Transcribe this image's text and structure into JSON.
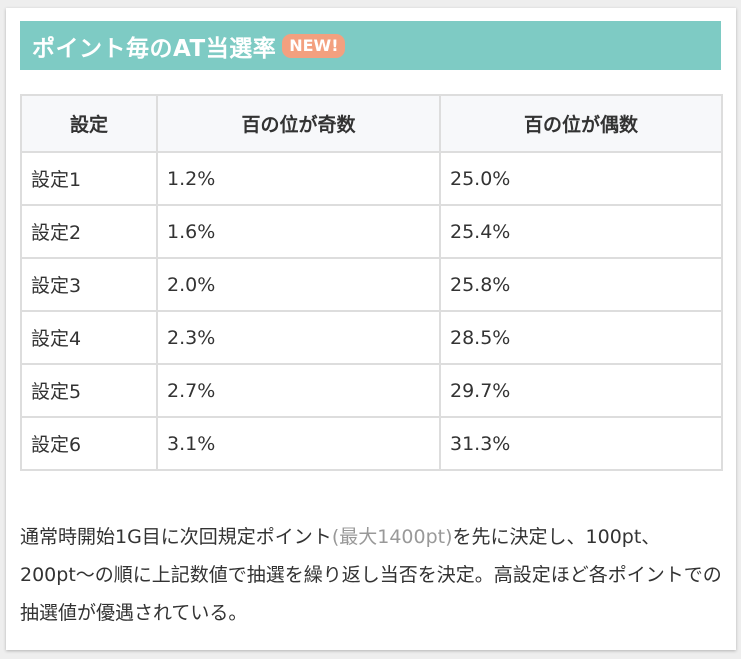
{
  "heading": {
    "title": "ポイント毎のAT当選率",
    "badge": "NEW!"
  },
  "table": {
    "headers": [
      "設定",
      "百の位が奇数",
      "百の位が偶数"
    ],
    "rows": [
      [
        "設定1",
        "1.2%",
        "25.0%"
      ],
      [
        "設定2",
        "1.6%",
        "25.4%"
      ],
      [
        "設定3",
        "2.0%",
        "25.8%"
      ],
      [
        "設定4",
        "2.3%",
        "28.5%"
      ],
      [
        "設定5",
        "2.7%",
        "29.7%"
      ],
      [
        "設定6",
        "3.1%",
        "31.3%"
      ]
    ]
  },
  "note": {
    "part1": "通常時開始1G目に次回規定ポイント",
    "muted": "(最大1400pt)",
    "part2": "を先に決定し、100pt、200pt〜の順に上記数値で抽選を繰り返し当否を決定。高設定ほど各ポイントでの抽選値が優遇されている。"
  },
  "colors": {
    "heading_bg": "#7ecbc4",
    "badge_bg": "#f3a07f",
    "table_border": "#dddddd",
    "header_bg": "#f7f8fa",
    "muted_text": "#999999"
  }
}
